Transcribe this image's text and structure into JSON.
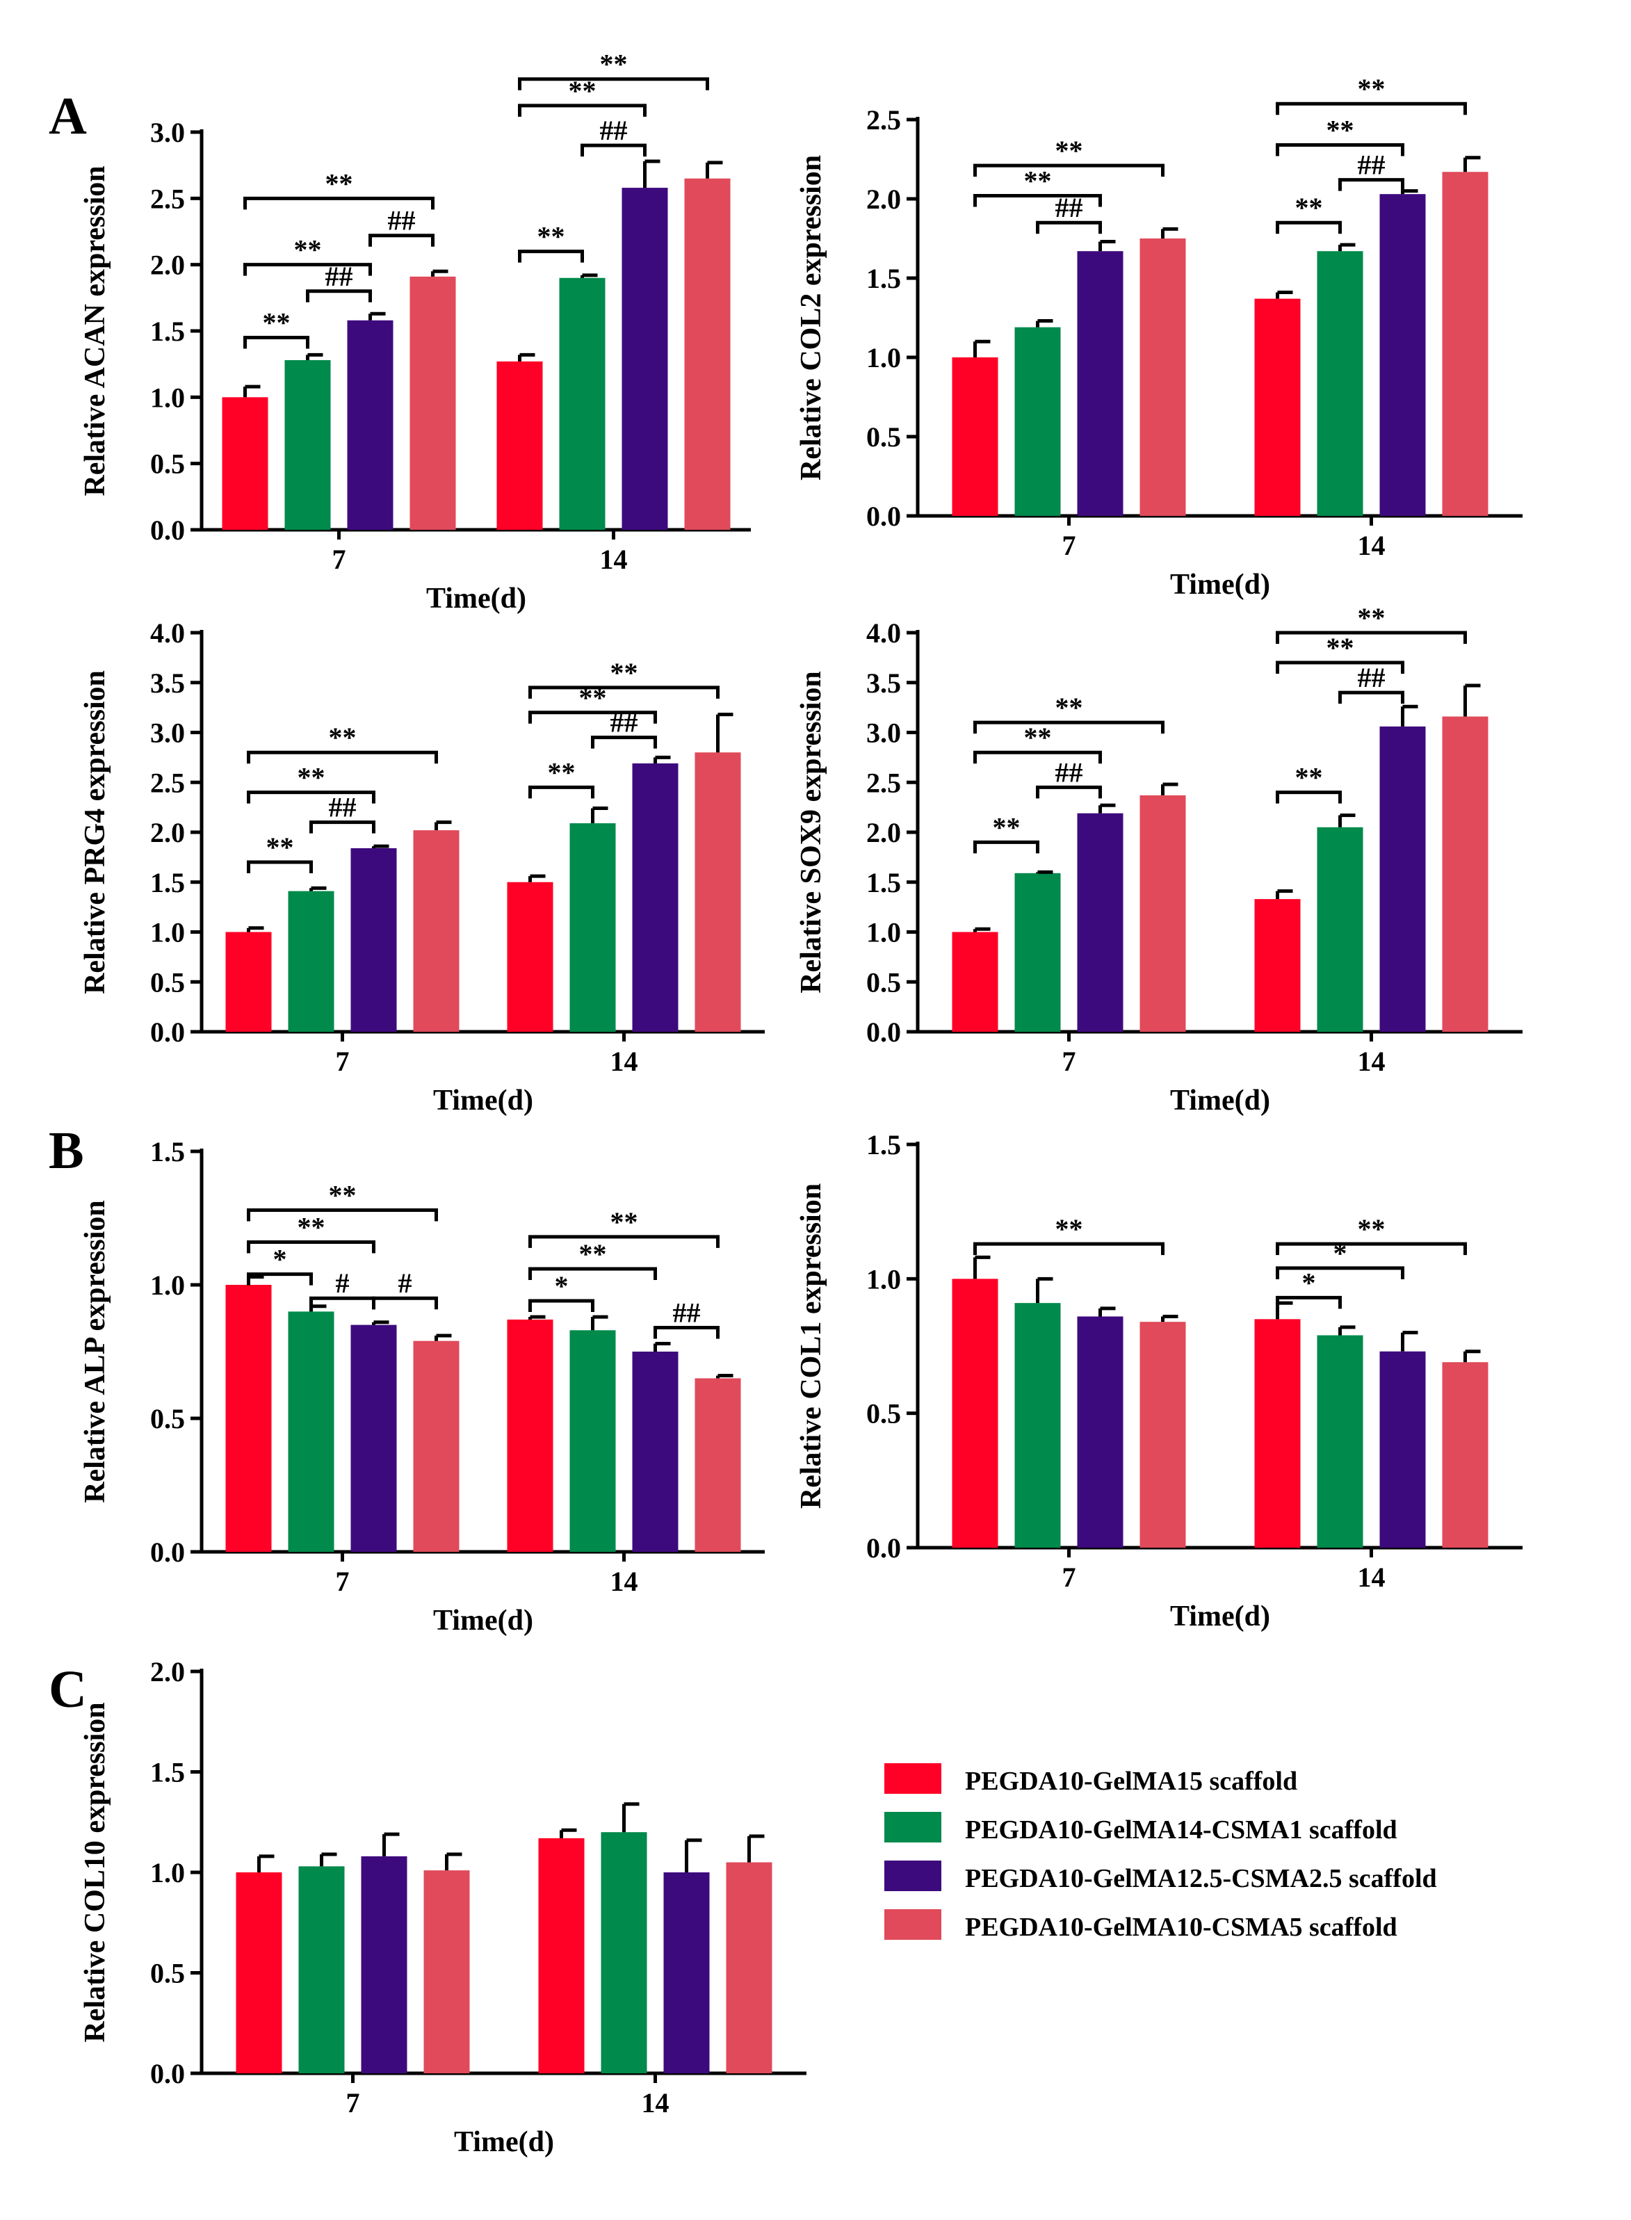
{
  "colors": {
    "series": [
      "#ff0026",
      "#008a4b",
      "#3d0a7e",
      "#e04a5a"
    ]
  },
  "legend": {
    "entries": [
      "PEGDA10-GelMA15 scaffold",
      "PEGDA10-GelMA14-CSMA1 scaffold",
      "PEGDA10-GelMA12.5-CSMA2.5 scaffold",
      "PEGDA10-GelMA10-CSMA5 scaffold"
    ]
  },
  "panel_labels": [
    "A",
    "B",
    "C"
  ],
  "chart_data": [
    {
      "type": "bar",
      "id": "acan",
      "ylabel": "Relative ACAN expression",
      "xlabel": "Time(d)",
      "categories": [
        "7",
        "14"
      ],
      "ylim": [
        0,
        3.0
      ],
      "yticks": [
        "0.0",
        "0.5",
        "1.0",
        "1.5",
        "2.0",
        "2.5",
        "3.0"
      ],
      "series": [
        {
          "name": "PEGDA10-GelMA15 scaffold",
          "values": [
            1.0,
            1.27
          ],
          "errors": [
            0.08,
            0.05
          ]
        },
        {
          "name": "PEGDA10-GelMA14-CSMA1 scaffold",
          "values": [
            1.28,
            1.9
          ],
          "errors": [
            0.04,
            0.02
          ]
        },
        {
          "name": "PEGDA10-GelMA12.5-CSMA2.5 scaffold",
          "values": [
            1.58,
            2.58
          ],
          "errors": [
            0.05,
            0.2
          ]
        },
        {
          "name": "PEGDA10-GelMA10-CSMA5 scaffold",
          "values": [
            1.91,
            2.65
          ],
          "errors": [
            0.04,
            0.12
          ]
        }
      ],
      "significance": [
        {
          "group": 0,
          "from": 0,
          "to": 1,
          "label": "**",
          "level": 1.45
        },
        {
          "group": 0,
          "from": 2,
          "to": 3,
          "label": "##",
          "level": 2.22
        },
        {
          "group": 0,
          "from": 1,
          "to": 2,
          "label": "##",
          "level": 1.8
        },
        {
          "group": 0,
          "from": 0,
          "to": 2,
          "label": "**",
          "level": 2.0
        },
        {
          "group": 0,
          "from": 0,
          "to": 3,
          "label": "**",
          "level": 2.5
        },
        {
          "group": 1,
          "from": 0,
          "to": 1,
          "label": "**",
          "level": 2.1
        },
        {
          "group": 1,
          "from": 1,
          "to": 2,
          "label": "##",
          "level": 2.9
        },
        {
          "group": 1,
          "from": 0,
          "to": 2,
          "label": "**",
          "level": 3.2
        },
        {
          "group": 1,
          "from": 0,
          "to": 3,
          "label": "**",
          "level": 3.4
        }
      ]
    },
    {
      "type": "bar",
      "id": "col2",
      "ylabel": "Relative COL2 expression",
      "xlabel": "Time(d)",
      "categories": [
        "7",
        "14"
      ],
      "ylim": [
        0,
        2.5
      ],
      "yticks": [
        "0.0",
        "0.5",
        "1.0",
        "1.5",
        "2.0",
        "2.5"
      ],
      "series": [
        {
          "name": "PEGDA10-GelMA15 scaffold",
          "values": [
            1.0,
            1.37
          ],
          "errors": [
            0.1,
            0.04
          ]
        },
        {
          "name": "PEGDA10-GelMA14-CSMA1 scaffold",
          "values": [
            1.19,
            1.67
          ],
          "errors": [
            0.04,
            0.04
          ]
        },
        {
          "name": "PEGDA10-GelMA12.5-CSMA2.5 scaffold",
          "values": [
            1.67,
            2.03
          ],
          "errors": [
            0.06,
            0.02
          ]
        },
        {
          "name": "PEGDA10-GelMA10-CSMA5 scaffold",
          "values": [
            1.75,
            2.17
          ],
          "errors": [
            0.06,
            0.09
          ]
        }
      ],
      "significance": [
        {
          "group": 0,
          "from": 1,
          "to": 2,
          "label": "##",
          "level": 1.85
        },
        {
          "group": 0,
          "from": 0,
          "to": 2,
          "label": "**",
          "level": 2.02
        },
        {
          "group": 0,
          "from": 0,
          "to": 3,
          "label": "**",
          "level": 2.21
        },
        {
          "group": 1,
          "from": 0,
          "to": 1,
          "label": "**",
          "level": 1.85
        },
        {
          "group": 1,
          "from": 1,
          "to": 2,
          "label": "##",
          "level": 2.12
        },
        {
          "group": 1,
          "from": 0,
          "to": 2,
          "label": "**",
          "level": 2.34
        },
        {
          "group": 1,
          "from": 0,
          "to": 3,
          "label": "**",
          "level": 2.6
        }
      ]
    },
    {
      "type": "bar",
      "id": "prg4",
      "ylabel": "Relative PRG4 expression",
      "xlabel": "Time(d)",
      "categories": [
        "7",
        "14"
      ],
      "ylim": [
        0,
        4.0
      ],
      "yticks": [
        "0.0",
        "0.5",
        "1.0",
        "1.5",
        "2.0",
        "2.5",
        "3.0",
        "3.5",
        "4.0"
      ],
      "series": [
        {
          "name": "PEGDA10-GelMA15 scaffold",
          "values": [
            1.0,
            1.5
          ],
          "errors": [
            0.04,
            0.06
          ]
        },
        {
          "name": "PEGDA10-GelMA14-CSMA1 scaffold",
          "values": [
            1.41,
            2.09
          ],
          "errors": [
            0.03,
            0.15
          ]
        },
        {
          "name": "PEGDA10-GelMA12.5-CSMA2.5 scaffold",
          "values": [
            1.84,
            2.69
          ],
          "errors": [
            0.02,
            0.06
          ]
        },
        {
          "name": "PEGDA10-GelMA10-CSMA5 scaffold",
          "values": [
            2.02,
            2.8
          ],
          "errors": [
            0.08,
            0.38
          ]
        }
      ],
      "significance": [
        {
          "group": 0,
          "from": 0,
          "to": 1,
          "label": "**",
          "level": 1.7
        },
        {
          "group": 0,
          "from": 1,
          "to": 2,
          "label": "##",
          "level": 2.1
        },
        {
          "group": 0,
          "from": 0,
          "to": 2,
          "label": "**",
          "level": 2.4
        },
        {
          "group": 0,
          "from": 0,
          "to": 3,
          "label": "**",
          "level": 2.8
        },
        {
          "group": 1,
          "from": 0,
          "to": 1,
          "label": "**",
          "level": 2.45
        },
        {
          "group": 1,
          "from": 1,
          "to": 2,
          "label": "##",
          "level": 2.95
        },
        {
          "group": 1,
          "from": 0,
          "to": 2,
          "label": "**",
          "level": 3.2
        },
        {
          "group": 1,
          "from": 0,
          "to": 3,
          "label": "**",
          "level": 3.45
        }
      ]
    },
    {
      "type": "bar",
      "id": "sox9",
      "ylabel": "Relative SOX9 expression",
      "xlabel": "Time(d)",
      "categories": [
        "7",
        "14"
      ],
      "ylim": [
        0,
        4.0
      ],
      "yticks": [
        "0.0",
        "0.5",
        "1.0",
        "1.5",
        "2.0",
        "2.5",
        "3.0",
        "3.5",
        "4.0"
      ],
      "series": [
        {
          "name": "PEGDA10-GelMA15 scaffold",
          "values": [
            1.0,
            1.33
          ],
          "errors": [
            0.03,
            0.08
          ]
        },
        {
          "name": "PEGDA10-GelMA14-CSMA1 scaffold",
          "values": [
            1.59,
            2.05
          ],
          "errors": [
            0.01,
            0.12
          ]
        },
        {
          "name": "PEGDA10-GelMA12.5-CSMA2.5 scaffold",
          "values": [
            2.19,
            3.06
          ],
          "errors": [
            0.08,
            0.2
          ]
        },
        {
          "name": "PEGDA10-GelMA10-CSMA5 scaffold",
          "values": [
            2.37,
            3.16
          ],
          "errors": [
            0.11,
            0.31
          ]
        }
      ],
      "significance": [
        {
          "group": 0,
          "from": 0,
          "to": 1,
          "label": "**",
          "level": 1.9
        },
        {
          "group": 0,
          "from": 1,
          "to": 2,
          "label": "##",
          "level": 2.45
        },
        {
          "group": 0,
          "from": 0,
          "to": 2,
          "label": "**",
          "level": 2.8
        },
        {
          "group": 0,
          "from": 0,
          "to": 3,
          "label": "**",
          "level": 3.1
        },
        {
          "group": 1,
          "from": 0,
          "to": 1,
          "label": "**",
          "level": 2.4
        },
        {
          "group": 1,
          "from": 1,
          "to": 2,
          "label": "##",
          "level": 3.4
        },
        {
          "group": 1,
          "from": 0,
          "to": 2,
          "label": "**",
          "level": 3.7
        },
        {
          "group": 1,
          "from": 0,
          "to": 3,
          "label": "**",
          "level": 4.0
        }
      ]
    },
    {
      "type": "bar",
      "id": "alp",
      "ylabel": "Relative ALP expression",
      "xlabel": "Time(d)",
      "categories": [
        "7",
        "14"
      ],
      "ylim": [
        0,
        1.5
      ],
      "yticks": [
        "0.0",
        "0.5",
        "1.0",
        "1.5"
      ],
      "series": [
        {
          "name": "PEGDA10-GelMA15 scaffold",
          "values": [
            1.0,
            0.87
          ],
          "errors": [
            0.03,
            0.01
          ]
        },
        {
          "name": "PEGDA10-GelMA14-CSMA1 scaffold",
          "values": [
            0.9,
            0.83
          ],
          "errors": [
            0.02,
            0.05
          ]
        },
        {
          "name": "PEGDA10-GelMA12.5-CSMA2.5 scaffold",
          "values": [
            0.85,
            0.75
          ],
          "errors": [
            0.01,
            0.03
          ]
        },
        {
          "name": "PEGDA10-GelMA10-CSMA5 scaffold",
          "values": [
            0.79,
            0.65
          ],
          "errors": [
            0.02,
            0.01
          ]
        }
      ],
      "significance": [
        {
          "group": 0,
          "from": 1,
          "to": 2,
          "label": "#",
          "level": 0.95
        },
        {
          "group": 0,
          "from": 2,
          "to": 3,
          "label": "#",
          "level": 0.95
        },
        {
          "group": 0,
          "from": 0,
          "to": 1,
          "label": "*",
          "level": 1.04
        },
        {
          "group": 0,
          "from": 0,
          "to": 2,
          "label": "**",
          "level": 1.16
        },
        {
          "group": 0,
          "from": 0,
          "to": 3,
          "label": "**",
          "level": 1.28
        },
        {
          "group": 1,
          "from": 2,
          "to": 3,
          "label": "##",
          "level": 0.84
        },
        {
          "group": 1,
          "from": 0,
          "to": 1,
          "label": "*",
          "level": 0.94
        },
        {
          "group": 1,
          "from": 0,
          "to": 2,
          "label": "**",
          "level": 1.06
        },
        {
          "group": 1,
          "from": 0,
          "to": 3,
          "label": "**",
          "level": 1.18
        }
      ]
    },
    {
      "type": "bar",
      "id": "col1",
      "ylabel": "Relative COL1 expression",
      "xlabel": "Time(d)",
      "categories": [
        "7",
        "14"
      ],
      "ylim": [
        0,
        1.5
      ],
      "yticks": [
        "0.0",
        "0.5",
        "1.0",
        "1.5"
      ],
      "series": [
        {
          "name": "PEGDA10-GelMA15 scaffold",
          "values": [
            1.0,
            0.85
          ],
          "errors": [
            0.08,
            0.06
          ]
        },
        {
          "name": "PEGDA10-GelMA14-CSMA1 scaffold",
          "values": [
            0.91,
            0.79
          ],
          "errors": [
            0.09,
            0.03
          ]
        },
        {
          "name": "PEGDA10-GelMA12.5-CSMA2.5 scaffold",
          "values": [
            0.86,
            0.73
          ],
          "errors": [
            0.03,
            0.07
          ]
        },
        {
          "name": "PEGDA10-GelMA10-CSMA5 scaffold",
          "values": [
            0.84,
            0.69
          ],
          "errors": [
            0.02,
            0.04
          ]
        }
      ],
      "significance": [
        {
          "group": 0,
          "from": 0,
          "to": 3,
          "label": "**",
          "level": 1.13
        },
        {
          "group": 1,
          "from": 0,
          "to": 1,
          "label": "*",
          "level": 0.93
        },
        {
          "group": 1,
          "from": 0,
          "to": 2,
          "label": "*",
          "level": 1.04
        },
        {
          "group": 1,
          "from": 0,
          "to": 3,
          "label": "**",
          "level": 1.13
        }
      ]
    },
    {
      "type": "bar",
      "id": "col10",
      "ylabel": "Relative COL10 expression",
      "xlabel": "Time(d)",
      "categories": [
        "7",
        "14"
      ],
      "ylim": [
        0,
        2.0
      ],
      "yticks": [
        "0.0",
        "0.5",
        "1.0",
        "1.5",
        "2.0"
      ],
      "series": [
        {
          "name": "PEGDA10-GelMA15 scaffold",
          "values": [
            1.0,
            1.17
          ],
          "errors": [
            0.08,
            0.04
          ]
        },
        {
          "name": "PEGDA10-GelMA14-CSMA1 scaffold",
          "values": [
            1.03,
            1.2
          ],
          "errors": [
            0.06,
            0.14
          ]
        },
        {
          "name": "PEGDA10-GelMA12.5-CSMA2.5 scaffold",
          "values": [
            1.08,
            1.0
          ],
          "errors": [
            0.11,
            0.16
          ]
        },
        {
          "name": "PEGDA10-GelMA10-CSMA5 scaffold",
          "values": [
            1.01,
            1.05
          ],
          "errors": [
            0.08,
            0.13
          ]
        }
      ],
      "significance": []
    }
  ]
}
